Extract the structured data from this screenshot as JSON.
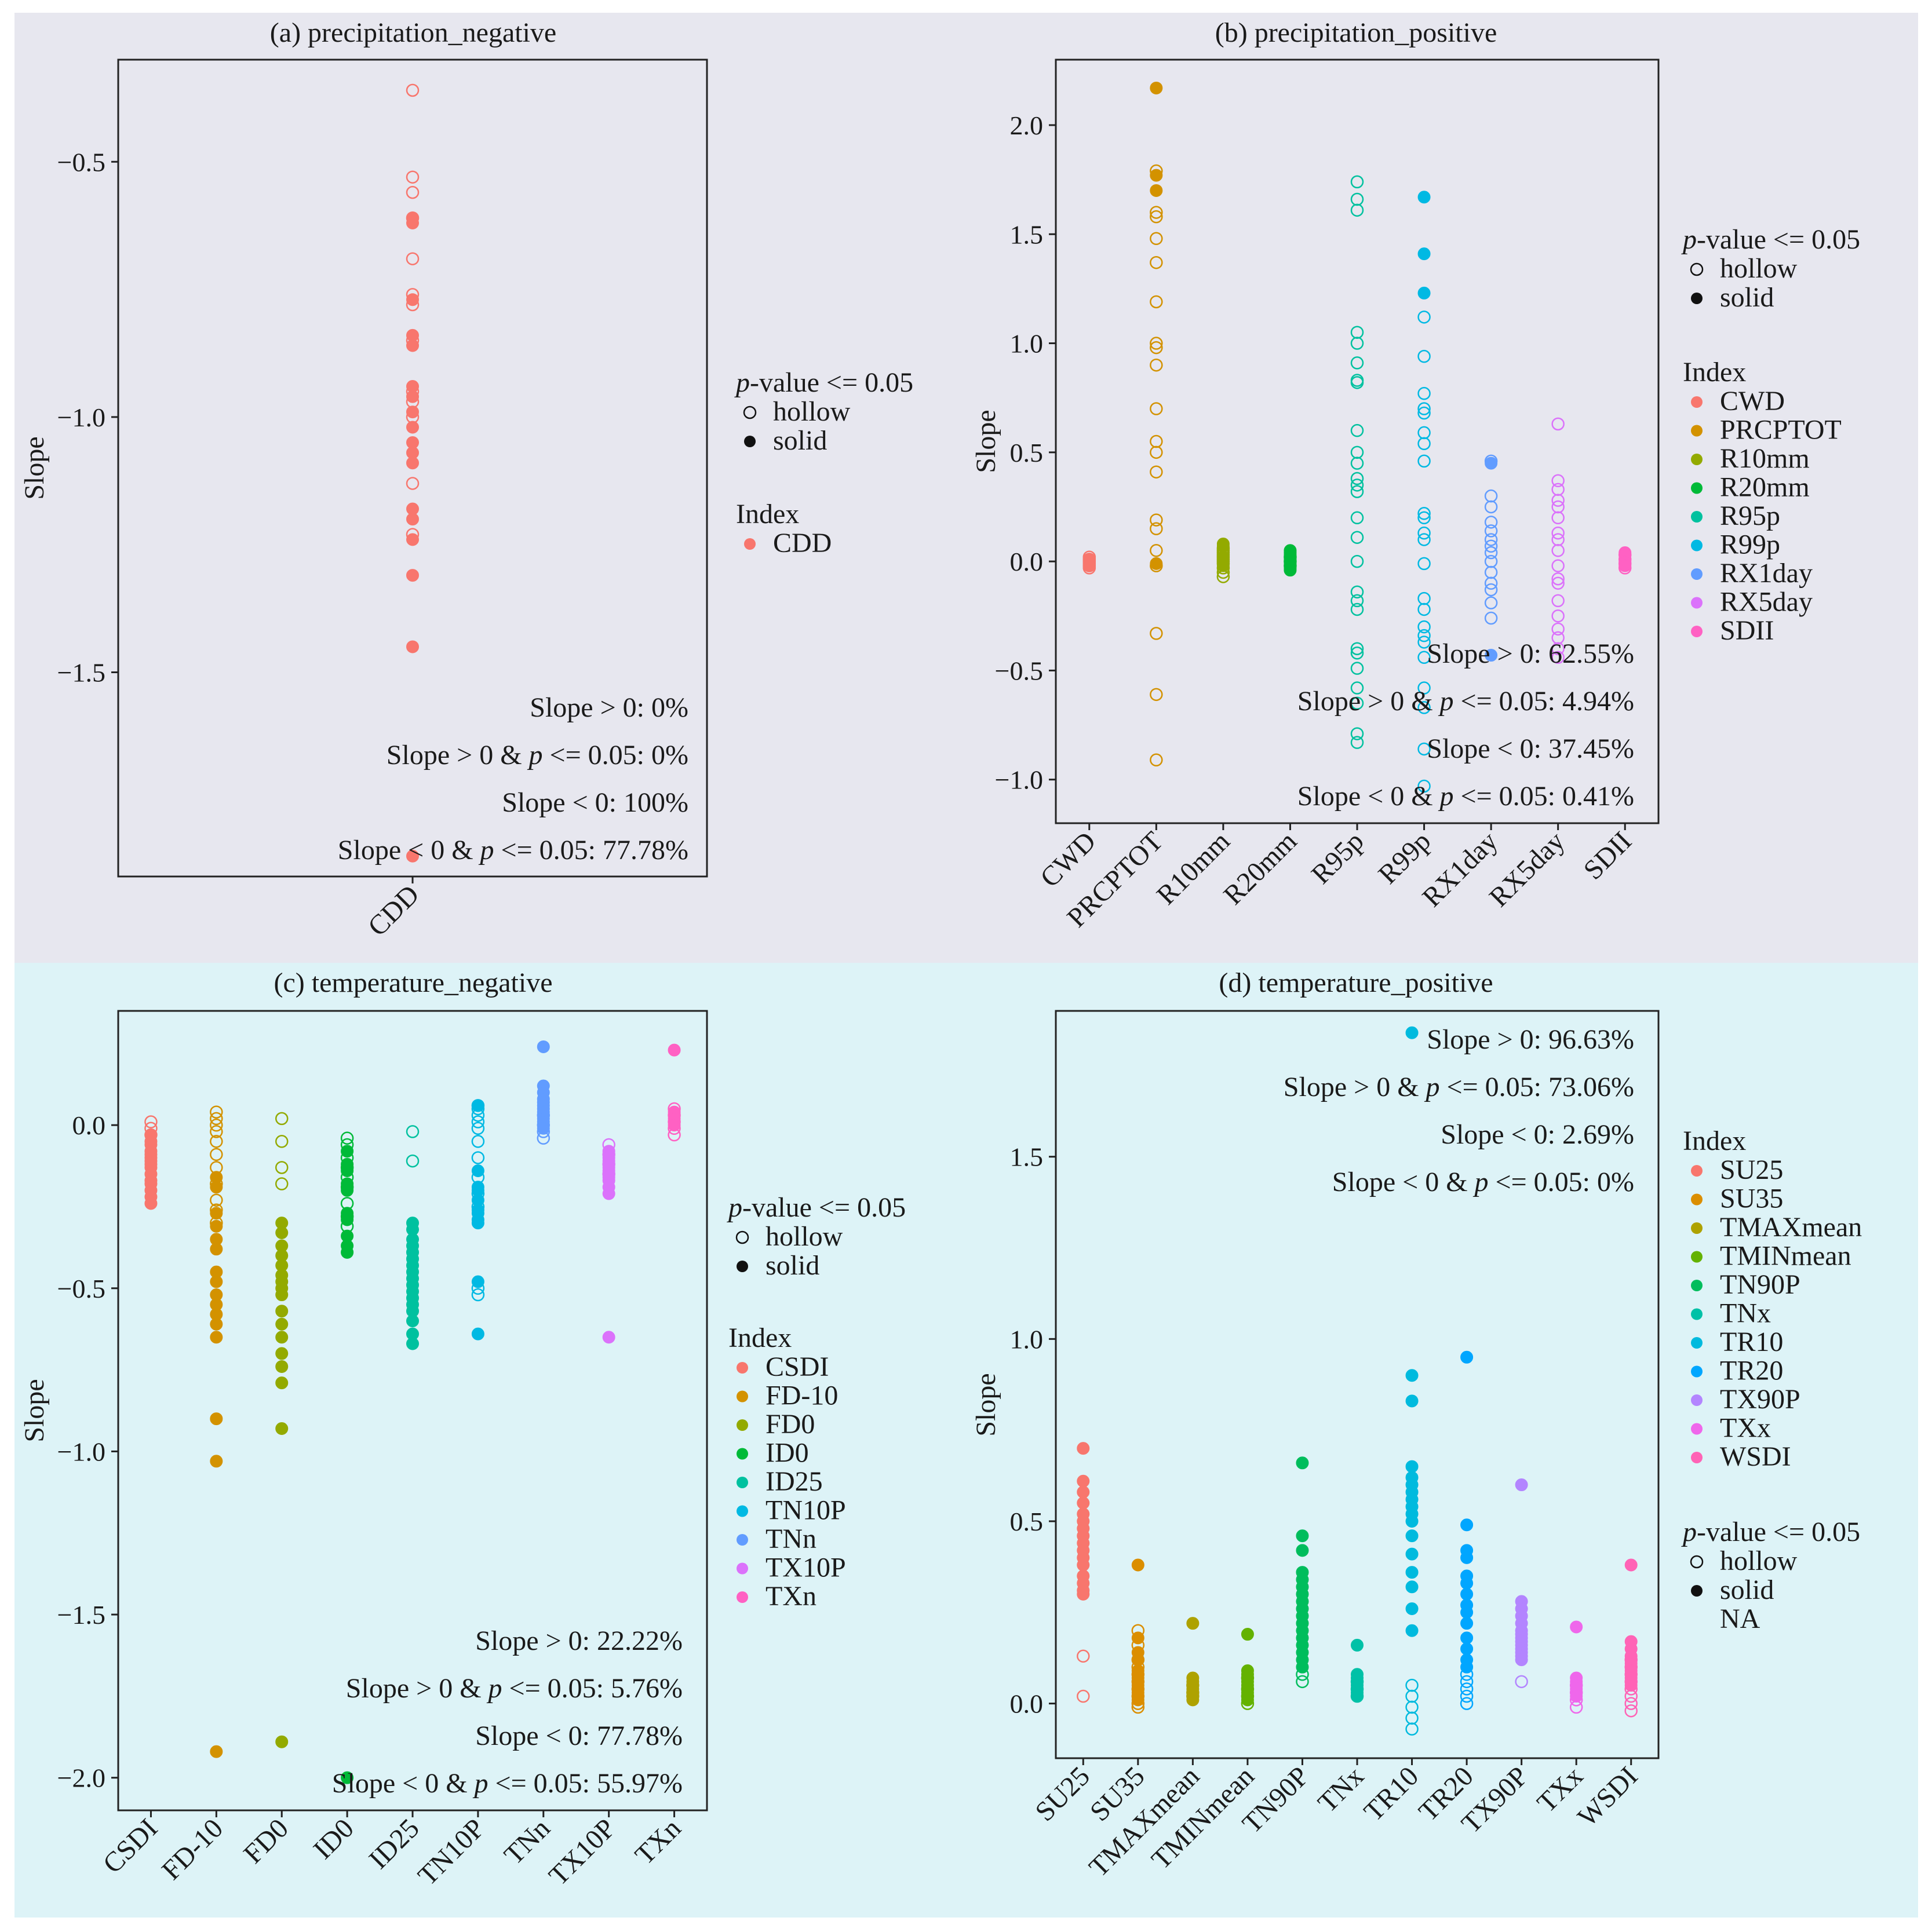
{
  "chart_data": [
    {
      "id": "a",
      "type": "scatter",
      "title": "(a) precipitation_negative",
      "xlabel": "",
      "ylabel": "Slope",
      "ylim": [
        -1.9,
        -0.3
      ],
      "yticks": [
        -1.5,
        -1.0,
        -0.5
      ],
      "ytick_labels": [
        "−1.5",
        "−1.0",
        "−0.5"
      ],
      "categories": [
        "CDD"
      ],
      "colors": [
        "#F8766D"
      ],
      "legend": {
        "pvalue_title": "-value <= 0.05",
        "pvalue_title_italic": "p",
        "entries": [
          "hollow",
          "solid"
        ],
        "index_title": "Index",
        "index_entries": [
          "CDD"
        ]
      },
      "points": [
        {
          "cat": "CDD",
          "hollow": [
            -0.36,
            -0.53,
            -0.56,
            -0.61,
            -0.69,
            -0.76,
            -0.78,
            -0.85,
            -0.95,
            -0.97,
            -1.0,
            -1.13,
            -1.23
          ],
          "solid": [
            -0.61,
            -0.62,
            -0.77,
            -0.84,
            -0.86,
            -0.94,
            -0.96,
            -0.99,
            -1.02,
            -1.05,
            -1.07,
            -1.09,
            -1.18,
            -1.2,
            -1.24,
            -1.31,
            -1.45,
            -1.86
          ]
        }
      ],
      "stats": [
        "Slope > 0: 0%",
        "Slope > 0 & p <= 0.05: 0%",
        "Slope < 0: 100%",
        "Slope < 0 & p <= 0.05: 77.78%"
      ]
    },
    {
      "id": "b",
      "type": "scatter",
      "title": "(b) precipitation_positive",
      "xlabel": "",
      "ylabel": "Slope",
      "ylim": [
        -1.2,
        2.3
      ],
      "yticks": [
        -1.0,
        -0.5,
        0.0,
        0.5,
        1.0,
        1.5,
        2.0
      ],
      "ytick_labels": [
        "−1.0",
        "−0.5",
        "0.0",
        "0.5",
        "1.0",
        "1.5",
        "2.0"
      ],
      "categories": [
        "CWD",
        "PRCPTOT",
        "R10mm",
        "R20mm",
        "R95p",
        "R99p",
        "RX1day",
        "RX5day",
        "SDII"
      ],
      "colors": [
        "#F8766D",
        "#D39200",
        "#93AA00",
        "#00BA38",
        "#00C19F",
        "#00B9E3",
        "#619CFF",
        "#DB72FB",
        "#FF61C3"
      ],
      "legend": {
        "pvalue_title": "-value <= 0.05",
        "pvalue_title_italic": "p",
        "entries": [
          "hollow",
          "solid"
        ],
        "index_title": "Index",
        "index_entries": [
          "CWD",
          "PRCPTOT",
          "R10mm",
          "R20mm",
          "R95p",
          "R99p",
          "RX1day",
          "RX5day",
          "SDII"
        ]
      },
      "points": [
        {
          "cat": "CWD",
          "hollow": [
            -0.03,
            -0.02,
            -0.01,
            0.0,
            0.01,
            0.02
          ],
          "solid": [
            -0.02,
            0.0,
            0.01
          ]
        },
        {
          "cat": "PRCPTOT",
          "hollow": [
            1.79,
            1.6,
            1.58,
            1.48,
            1.37,
            1.19,
            1.0,
            0.98,
            0.9,
            0.7,
            0.55,
            0.5,
            0.41,
            0.19,
            0.15,
            0.05,
            -0.02,
            -0.33,
            -0.61,
            -0.91
          ],
          "solid": [
            2.17,
            1.77,
            1.7,
            -0.01
          ]
        },
        {
          "cat": "R10mm",
          "hollow": [
            -0.07,
            -0.05,
            -0.03,
            -0.01,
            0.0,
            0.01,
            0.02,
            0.03,
            0.04,
            0.05,
            0.06
          ],
          "solid": [
            0.07,
            0.08,
            0.02,
            -0.02
          ]
        },
        {
          "cat": "R20mm",
          "hollow": [
            -0.02,
            0.0,
            0.02
          ],
          "solid": [
            -0.04,
            -0.03,
            -0.01,
            0.01,
            0.03,
            0.04,
            0.05
          ]
        },
        {
          "cat": "R95p",
          "hollow": [
            1.74,
            1.66,
            1.61,
            1.05,
            1.0,
            0.91,
            0.83,
            0.82,
            0.6,
            0.5,
            0.45,
            0.38,
            0.35,
            0.32,
            0.2,
            0.11,
            0.0,
            -0.14,
            -0.18,
            -0.22,
            -0.4,
            -0.42,
            -0.49,
            -0.58,
            -0.65,
            -0.79,
            -0.83
          ],
          "solid": []
        },
        {
          "cat": "R99p",
          "hollow": [
            1.12,
            0.94,
            0.77,
            0.7,
            0.68,
            0.59,
            0.54,
            0.46,
            0.22,
            0.2,
            0.13,
            0.1,
            -0.01,
            -0.17,
            -0.22,
            -0.3,
            -0.34,
            -0.37,
            -0.44,
            -0.58,
            -0.67,
            -0.86,
            -1.03
          ],
          "solid": [
            1.67,
            1.41,
            1.23
          ]
        },
        {
          "cat": "RX1day",
          "hollow": [
            0.46,
            0.3,
            0.25,
            0.18,
            0.14,
            0.1,
            0.07,
            0.04,
            0.0,
            -0.05,
            -0.1,
            -0.13,
            -0.19,
            -0.26
          ],
          "solid": [
            0.45,
            -0.43
          ]
        },
        {
          "cat": "RX5day",
          "hollow": [
            0.63,
            0.37,
            0.33,
            0.28,
            0.25,
            0.2,
            0.13,
            0.1,
            0.05,
            -0.02,
            -0.08,
            -0.1,
            -0.18,
            -0.25,
            -0.31,
            -0.35,
            -0.4,
            -0.44
          ],
          "solid": []
        },
        {
          "cat": "SDII",
          "hollow": [
            0.03,
            0.01,
            -0.01,
            -0.03
          ],
          "solid": [
            0.04,
            0.0,
            -0.02
          ]
        }
      ],
      "stats": [
        "Slope > 0: 62.55%",
        "Slope > 0 & p <= 0.05: 4.94%",
        "Slope < 0: 37.45%",
        "Slope < 0 & p <= 0.05: 0.41%"
      ]
    },
    {
      "id": "c",
      "type": "scatter",
      "title": "(c) temperature_negative",
      "xlabel": "",
      "ylabel": "Slope",
      "ylim": [
        -2.1,
        0.35
      ],
      "yticks": [
        -2.0,
        -1.5,
        -1.0,
        -0.5,
        0.0
      ],
      "ytick_labels": [
        "−2.0",
        "−1.5",
        "−1.0",
        "−0.5",
        "0.0"
      ],
      "categories": [
        "CSDI",
        "FD-10",
        "FD0",
        "ID0",
        "ID25",
        "TN10P",
        "TNn",
        "TX10P",
        "TXn"
      ],
      "colors": [
        "#F8766D",
        "#D39200",
        "#93AA00",
        "#00BA38",
        "#00C19F",
        "#00B9E3",
        "#619CFF",
        "#DB72FB",
        "#FF61C3"
      ],
      "legend": {
        "pvalue_title": "-value <= 0.05",
        "pvalue_title_italic": "p",
        "entries": [
          "hollow",
          "solid"
        ],
        "index_title": "Index",
        "index_entries": [
          "CSDI",
          "FD-10",
          "FD0",
          "ID0",
          "ID25",
          "TN10P",
          "TNn",
          "TX10P",
          "TXn"
        ]
      },
      "points": [
        {
          "cat": "CSDI",
          "hollow": [
            0.01,
            -0.01,
            -0.03
          ],
          "solid": [
            -0.03,
            -0.05,
            -0.06,
            -0.08,
            -0.09,
            -0.1,
            -0.11,
            -0.12,
            -0.13,
            -0.15,
            -0.17,
            -0.18,
            -0.2,
            -0.22,
            -0.24
          ]
        },
        {
          "cat": "FD-10",
          "hollow": [
            0.04,
            0.02,
            0.0,
            -0.02,
            -0.05,
            -0.09,
            -0.13,
            -0.18,
            -0.23,
            -0.26,
            -0.3
          ],
          "solid": [
            -0.16,
            -0.19,
            -0.27,
            -0.31,
            -0.35,
            -0.38,
            -0.45,
            -0.48,
            -0.52,
            -0.55,
            -0.58,
            -0.61,
            -0.65,
            -0.9,
            -1.03,
            -1.92
          ]
        },
        {
          "cat": "FD0",
          "hollow": [
            0.02,
            -0.05,
            -0.13,
            -0.18
          ],
          "solid": [
            -0.3,
            -0.33,
            -0.37,
            -0.4,
            -0.43,
            -0.46,
            -0.48,
            -0.5,
            -0.52,
            -0.57,
            -0.61,
            -0.65,
            -0.7,
            -0.74,
            -0.79,
            -0.93,
            -1.89
          ]
        },
        {
          "cat": "ID0",
          "hollow": [
            -0.04,
            -0.06,
            -0.1,
            -0.13,
            -0.16,
            -0.19,
            -0.24,
            -0.28,
            -0.31
          ],
          "solid": [
            -0.08,
            -0.12,
            -0.14,
            -0.18,
            -0.2,
            -0.27,
            -0.29,
            -0.34,
            -0.37,
            -0.39,
            -2.0
          ]
        },
        {
          "cat": "ID25",
          "hollow": [
            -0.02,
            -0.11
          ],
          "solid": [
            -0.3,
            -0.32,
            -0.35,
            -0.37,
            -0.39,
            -0.41,
            -0.43,
            -0.45,
            -0.47,
            -0.49,
            -0.51,
            -0.53,
            -0.55,
            -0.57,
            -0.6,
            -0.64,
            -0.67
          ]
        },
        {
          "cat": "TN10P",
          "hollow": [
            0.06,
            0.05,
            0.03,
            0.01,
            -0.01,
            -0.05,
            -0.1,
            -0.16,
            -0.21,
            -0.25,
            -0.5,
            -0.52
          ],
          "solid": [
            0.06,
            -0.14,
            -0.19,
            -0.2,
            -0.23,
            -0.26,
            -0.27,
            -0.29,
            -0.3,
            -0.48,
            -0.64
          ]
        },
        {
          "cat": "TNn",
          "hollow": [
            0.03,
            0.0,
            -0.02,
            -0.04
          ],
          "solid": [
            0.24,
            0.12,
            0.1,
            0.08,
            0.07,
            0.06,
            0.05,
            0.04,
            0.02,
            0.01,
            -0.01
          ]
        },
        {
          "cat": "TX10P",
          "hollow": [
            -0.06,
            -0.09,
            -0.12,
            -0.15
          ],
          "solid": [
            -0.08,
            -0.1,
            -0.11,
            -0.13,
            -0.14,
            -0.16,
            -0.17,
            -0.19,
            -0.21,
            -0.65
          ]
        },
        {
          "cat": "TXn",
          "hollow": [
            0.05,
            0.03,
            0.01,
            -0.01,
            -0.03
          ],
          "solid": [
            0.23,
            0.04,
            0.02,
            0.0
          ]
        }
      ],
      "stats": [
        "Slope > 0: 22.22%",
        "Slope > 0 & p <= 0.05: 5.76%",
        "Slope < 0: 77.78%",
        "Slope < 0 & p <= 0.05: 55.97%"
      ]
    },
    {
      "id": "d",
      "type": "scatter",
      "title": "(d) temperature_positive",
      "xlabel": "",
      "ylabel": "Slope",
      "ylim": [
        -0.15,
        1.9
      ],
      "yticks": [
        0.0,
        0.5,
        1.0,
        1.5
      ],
      "ytick_labels": [
        "0.0",
        "0.5",
        "1.0",
        "1.5"
      ],
      "categories": [
        "SU25",
        "SU35",
        "TMAXmean",
        "TMINmean",
        "TN90P",
        "TNx",
        "TR10",
        "TR20",
        "TX90P",
        "TXx",
        "WSDI"
      ],
      "colors": [
        "#F8766D",
        "#DB8E00",
        "#AEA200",
        "#64B200",
        "#00BD5C",
        "#00C1A7",
        "#00BADE",
        "#00A6FF",
        "#B385FF",
        "#EF67EB",
        "#FF63B6"
      ],
      "legend": {
        "index_title": "Index",
        "index_entries": [
          "SU25",
          "SU35",
          "TMAXmean",
          "TMINmean",
          "TN90P",
          "TNx",
          "TR10",
          "TR20",
          "TX90P",
          "TXx",
          "WSDI"
        ],
        "pvalue_title": "-value <= 0.05",
        "pvalue_title_italic": "p",
        "entries": [
          "hollow",
          "solid",
          "NA"
        ]
      },
      "points": [
        {
          "cat": "SU25",
          "hollow": [
            0.13,
            0.02
          ],
          "solid": [
            0.7,
            0.61,
            0.58,
            0.55,
            0.52,
            0.5,
            0.48,
            0.46,
            0.44,
            0.42,
            0.4,
            0.38,
            0.35,
            0.33,
            0.31,
            0.3
          ]
        },
        {
          "cat": "SU35",
          "hollow": [
            0.2,
            0.16,
            0.12,
            0.1,
            0.08,
            0.06,
            0.04,
            0.02,
            0.0,
            -0.01
          ],
          "solid": [
            0.38,
            0.18,
            0.14,
            0.12,
            0.09,
            0.07,
            0.05,
            0.03,
            0.01
          ]
        },
        {
          "cat": "TMAXmean",
          "hollow": [
            0.05,
            0.03,
            0.02
          ],
          "solid": [
            0.22,
            0.07,
            0.06,
            0.04,
            0.03,
            0.02,
            0.01
          ]
        },
        {
          "cat": "TMINmean",
          "hollow": [
            0.07,
            0.04,
            0.02,
            0.0
          ],
          "solid": [
            0.19,
            0.09,
            0.08,
            0.06,
            0.05,
            0.03,
            0.01
          ]
        },
        {
          "cat": "TN90P",
          "hollow": [
            0.06,
            0.08
          ],
          "solid": [
            0.66,
            0.46,
            0.42,
            0.36,
            0.34,
            0.32,
            0.3,
            0.28,
            0.26,
            0.24,
            0.22,
            0.2,
            0.18,
            0.16,
            0.14,
            0.12,
            0.1
          ]
        },
        {
          "cat": "TNx",
          "hollow": [
            0.06,
            0.04,
            0.02
          ],
          "solid": [
            0.16,
            0.08,
            0.07,
            0.05,
            0.04,
            0.03,
            0.02
          ]
        },
        {
          "cat": "TR10",
          "hollow": [
            0.05,
            0.02,
            -0.01,
            -0.04,
            -0.07
          ],
          "solid": [
            1.84,
            0.9,
            0.83,
            0.65,
            0.62,
            0.6,
            0.58,
            0.56,
            0.54,
            0.52,
            0.5,
            0.46,
            0.41,
            0.36,
            0.32,
            0.26,
            0.2
          ]
        },
        {
          "cat": "TR20",
          "hollow": [
            0.08,
            0.06,
            0.04,
            0.02,
            0.0
          ],
          "solid": [
            0.95,
            0.49,
            0.42,
            0.4,
            0.35,
            0.33,
            0.3,
            0.27,
            0.25,
            0.22,
            0.18,
            0.15,
            0.12,
            0.1
          ]
        },
        {
          "cat": "TX90P",
          "hollow": [
            0.06
          ],
          "solid": [
            0.6,
            0.28,
            0.26,
            0.24,
            0.22,
            0.2,
            0.19,
            0.18,
            0.17,
            0.16,
            0.15,
            0.14,
            0.13,
            0.12
          ]
        },
        {
          "cat": "TXx",
          "hollow": [
            0.05,
            0.03,
            0.01,
            -0.01
          ],
          "solid": [
            0.21,
            0.07,
            0.06,
            0.04,
            0.02
          ]
        },
        {
          "cat": "WSDI",
          "hollow": [
            0.12,
            0.1,
            0.08,
            0.06,
            0.04,
            0.02,
            0.0,
            -0.02
          ],
          "solid": [
            0.38,
            0.17,
            0.15,
            0.13,
            0.11,
            0.09,
            0.07,
            0.05
          ]
        }
      ],
      "stats": [
        "Slope > 0: 96.63%",
        "Slope > 0 & p <= 0.05: 73.06%",
        "Slope < 0: 2.69%",
        "Slope < 0 & p <= 0.05: 0%"
      ]
    }
  ]
}
